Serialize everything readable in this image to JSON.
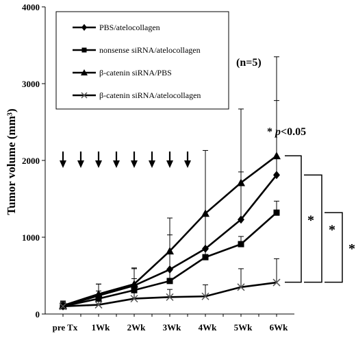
{
  "chart_data": {
    "type": "line",
    "ylabel": "Tumor volume (mm³)",
    "ylim": [
      0,
      4000
    ],
    "yticks": [
      0,
      1000,
      2000,
      3000,
      4000
    ],
    "categories": [
      "pre Tx",
      "1Wk",
      "2Wk",
      "3Wk",
      "4Wk",
      "5Wk",
      "6Wk"
    ],
    "x": [
      0,
      1,
      2,
      3,
      4,
      5,
      6,
      7,
      8,
      9,
      10,
      11,
      12
    ],
    "series": [
      {
        "name": "PBS/atelocollagen",
        "marker": "diamond",
        "x": [
          0,
          2,
          4,
          6,
          8,
          10,
          12
        ],
        "values": [
          100,
          240,
          370,
          580,
          850,
          1230,
          1810
        ],
        "errors": [
          60,
          150,
          230,
          450,
          450,
          620,
          970
        ]
      },
      {
        "name": "nonsense siRNA/atelocollagen",
        "marker": "square",
        "x": [
          0,
          2,
          4,
          6,
          8,
          10,
          12
        ],
        "values": [
          100,
          200,
          310,
          430,
          740,
          910,
          1320
        ],
        "errors": [
          50,
          100,
          150,
          150,
          100,
          100,
          150
        ]
      },
      {
        "name": "β-catenin siRNA/PBS",
        "marker": "triangle",
        "x": [
          0,
          2,
          4,
          6,
          8,
          10,
          12
        ],
        "values": [
          110,
          260,
          390,
          820,
          1310,
          1710,
          2060
        ],
        "errors": [
          60,
          130,
          200,
          430,
          820,
          960,
          1290
        ]
      },
      {
        "name": "β-catenin siRNA/atelocollagen",
        "marker": "x",
        "x": [
          0,
          2,
          4,
          6,
          8,
          10,
          12
        ],
        "values": [
          100,
          120,
          200,
          220,
          230,
          350,
          410
        ],
        "errors": [
          40,
          60,
          80,
          100,
          150,
          240,
          310
        ]
      }
    ],
    "arrows_at_x": [
      0,
      1,
      2,
      3,
      4,
      5,
      6,
      7
    ],
    "annotations": {
      "n": "(n=5)",
      "p_star": "* ",
      "p_italic": "p",
      "p_rest": "<0.05",
      "sig_star": "*"
    },
    "significance_brackets": [
      {
        "from": "β-catenin siRNA/PBS",
        "to": "β-catenin siRNA/atelocollagen",
        "label": "*"
      },
      {
        "from": "PBS/atelocollagen",
        "to": "β-catenin siRNA/atelocollagen",
        "label": "*"
      },
      {
        "from": "nonsense siRNA/atelocollagen",
        "to": "β-catenin siRNA/atelocollagen",
        "label": "*"
      }
    ],
    "grid": false,
    "legend": "top-left"
  }
}
